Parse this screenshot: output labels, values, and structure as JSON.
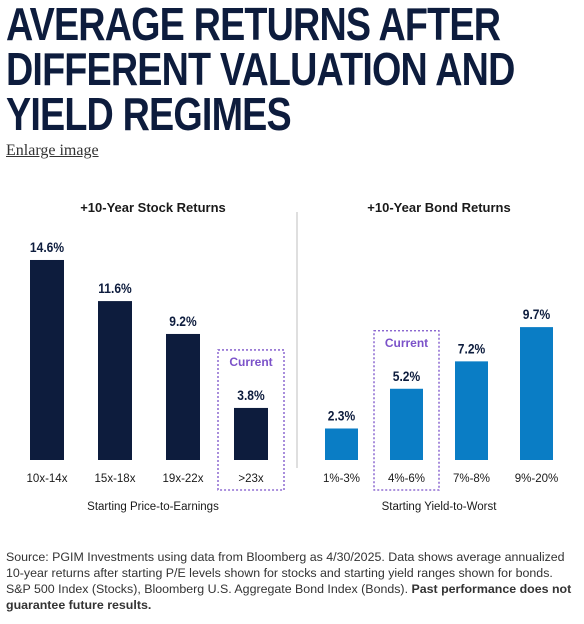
{
  "header": {
    "title": "AVERAGE RETURNS AFTER DIFFERENT VALUATION AND YIELD REGIMES",
    "enlarge_link": "Enlarge image"
  },
  "colors": {
    "stock_bar": "#0d1c3d",
    "bond_bar": "#0a7dc5",
    "current_box": "#7b52c9",
    "headline": "#0d1c3d"
  },
  "chart_data": [
    {
      "type": "bar",
      "title": "+10-Year Stock Returns",
      "xlabel": "Starting Price-to-Earnings",
      "ylabel": "",
      "categories": [
        "10x-14x",
        "15x-18x",
        "19x-22x",
        ">23x"
      ],
      "values": [
        14.6,
        11.6,
        9.2,
        3.8
      ],
      "value_labels": [
        "14.6%",
        "11.6%",
        "9.2%",
        "3.8%"
      ],
      "highlight_index": 3,
      "highlight_label": "Current",
      "ylim": [
        0,
        15
      ]
    },
    {
      "type": "bar",
      "title": "+10-Year Bond Returns",
      "xlabel": "Starting Yield-to-Worst",
      "ylabel": "",
      "categories": [
        "1%-3%",
        "4%-6%",
        "7%-8%",
        "9%-20%"
      ],
      "values": [
        2.3,
        5.2,
        7.2,
        9.7
      ],
      "value_labels": [
        "2.3%",
        "5.2%",
        "7.2%",
        "9.7%"
      ],
      "highlight_index": 1,
      "highlight_label": "Current",
      "ylim": [
        0,
        15
      ]
    }
  ],
  "footer": {
    "source_text": "Source: PGIM Investments using data from Bloomberg as 4/30/2025. Data shows average annualized 10-year returns after starting P/E levels shown for stocks and starting yield ranges shown for bonds. S&P 500 Index (Stocks), Bloomberg U.S. Aggregate Bond Index (Bonds).",
    "disclaimer": "Past performance does not guarantee future results."
  }
}
